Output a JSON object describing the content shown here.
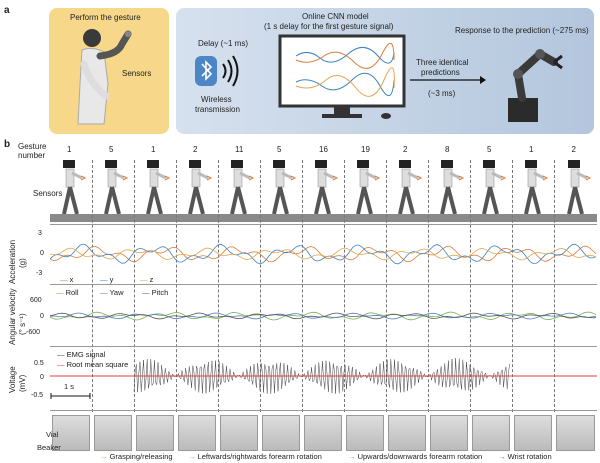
{
  "panel_a": {
    "letter": "a",
    "gesture_title": "Perform the gesture",
    "sensors": "Sensors",
    "delay": "Delay (~1 ms)",
    "wireless": "Wireless",
    "transmission": "transmission",
    "cnn_title": "Online CNN model",
    "cnn_sub": "(1 s delay for the first gesture signal)",
    "three_identical": "Three identical",
    "predictions": "predictions",
    "pred_delay": "(~3 ms)",
    "response": "Response to the prediction (~275 ms)"
  },
  "panel_b": {
    "letter": "b",
    "gesture_label1": "Gesture",
    "gesture_label2": "number",
    "gesture_numbers": [
      "1",
      "5",
      "1",
      "2",
      "11",
      "5",
      "16",
      "19",
      "2",
      "8",
      "5",
      "1",
      "2"
    ],
    "sensors": "Sensors",
    "acc": {
      "ylabel": "Acceleration",
      "unit": "(g)",
      "ticks": [
        "3",
        "0",
        "-3"
      ],
      "legend": [
        "x",
        "y",
        "z"
      ]
    },
    "ang": {
      "ylabel": "Angular velocity",
      "unit": "(° s⁻¹)",
      "ticks": [
        "600",
        "0",
        "-600"
      ],
      "legend": [
        "Roll",
        "Yaw",
        "Pitch"
      ]
    },
    "volt": {
      "ylabel": "Voltage",
      "unit": "(mV)",
      "ticks": [
        "0.5",
        "0",
        "-0.5"
      ],
      "legend": [
        "EMG signal",
        "Root mean square"
      ]
    },
    "scale": "1 s",
    "vial": "Vial",
    "beaker": "Beaker",
    "legend_bottom": [
      "Grasping/releasing",
      "Leftwards/rightwards forearm rotation",
      "Upwards/downwards forearm rotation",
      "Wrist rotation"
    ]
  },
  "colors": {
    "x": "#e07b39",
    "y": "#3b83c4",
    "z": "#e0a64f",
    "roll": "#7ab04f",
    "yaw": "#4f7fbf",
    "pitch": "#555555",
    "emg": "#444444",
    "rms": "#e03c3c",
    "green_arrow": "#5fa84f",
    "orange_arrow": "#f08a3c",
    "blue_arrow": "#4a8fd6",
    "red_arrow": "#e0422f"
  }
}
